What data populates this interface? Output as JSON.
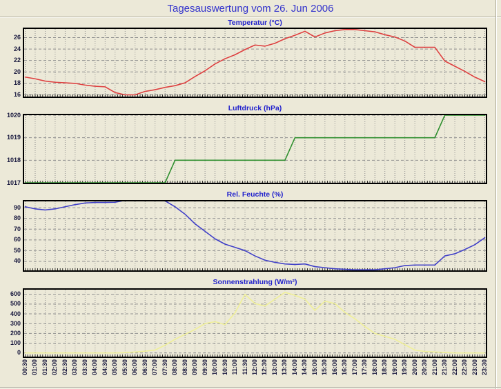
{
  "header": {
    "title": "Tagesauswertung vom 26. Jun 2006"
  },
  "colors": {
    "page_background": "#ece9d8",
    "plot_background": "#ece9d8",
    "grid": "#8f8f8f",
    "axis_border": "#000000",
    "page_title_text": "#3232cc",
    "chart_title_text": "#2222cc",
    "axis_label_text": "#17173d",
    "temperature_line": "#de4040",
    "pressure_line": "#2f8f2f",
    "humidity_line": "#4040c8",
    "radiation_line": "#f0f098"
  },
  "x_axis": {
    "labels": [
      "00:30",
      "01:00",
      "01:30",
      "02:00",
      "02:30",
      "03:00",
      "03:30",
      "04:00",
      "04:30",
      "05:00",
      "05:30",
      "06:00",
      "06:30",
      "07:00",
      "07:30",
      "08:00",
      "08:30",
      "09:00",
      "09:30",
      "10:00",
      "10:30",
      "11:00",
      "11:30",
      "12:00",
      "12:30",
      "13:00",
      "13:30",
      "14:00",
      "14:30",
      "15:00",
      "15:30",
      "16:00",
      "16:30",
      "17:00",
      "17:30",
      "18:00",
      "18:30",
      "19:00",
      "19:30",
      "20:00",
      "20:30",
      "21:00",
      "21:30",
      "22:00",
      "22:30",
      "23:00",
      "23:30"
    ]
  },
  "chart_data": [
    {
      "id": "temperatur",
      "type": "line",
      "title": "Temperatur (°C)",
      "line_color": "#de4040",
      "ylim": [
        15.7,
        27.5
      ],
      "yticks": [
        16,
        18,
        20,
        22,
        24,
        26
      ],
      "grid": true,
      "legend": false,
      "values": [
        19.1,
        18.8,
        18.4,
        18.2,
        18.1,
        18.0,
        17.7,
        17.5,
        17.4,
        16.4,
        16.0,
        16.0,
        16.6,
        16.9,
        17.3,
        17.6,
        18.1,
        19.2,
        20.2,
        21.4,
        22.3,
        23.0,
        23.9,
        24.7,
        24.5,
        25.0,
        25.8,
        26.4,
        27.1,
        26.1,
        26.8,
        27.2,
        27.4,
        27.4,
        27.2,
        27.0,
        26.5,
        26.1,
        25.4,
        24.3,
        24.3,
        24.3,
        21.9,
        21.0,
        20.1,
        19.1,
        18.3
      ]
    },
    {
      "id": "luftdruck",
      "type": "line",
      "title": "Luftdruck (hPa)",
      "line_color": "#2f8f2f",
      "ylim": [
        1017,
        1020
      ],
      "yticks": [
        1017,
        1018,
        1019,
        1020
      ],
      "grid": true,
      "legend": false,
      "values": [
        1017,
        1017,
        1017,
        1017,
        1017,
        1017,
        1017,
        1017,
        1017,
        1017,
        1017,
        1017,
        1017,
        1017,
        1017,
        1018,
        1018,
        1018,
        1018,
        1018,
        1018,
        1018,
        1018,
        1018,
        1018,
        1018,
        1018,
        1019,
        1019,
        1019,
        1019,
        1019,
        1019,
        1019,
        1019,
        1019,
        1019,
        1019,
        1019,
        1019,
        1019,
        1019,
        1020,
        1020,
        1020,
        1020,
        1020
      ]
    },
    {
      "id": "feuchte",
      "type": "line",
      "title": "Rel. Feuchte (%)",
      "line_color": "#4040c8",
      "ylim": [
        31.5,
        96
      ],
      "yticks": [
        40,
        50,
        60,
        70,
        80,
        90
      ],
      "grid": true,
      "legend": false,
      "values": [
        91,
        89,
        88,
        89,
        91,
        93,
        94.5,
        95,
        95,
        95.2,
        97,
        97.5,
        97.5,
        97,
        96.5,
        91,
        84,
        75,
        68,
        61,
        56,
        53,
        50,
        45,
        41,
        39,
        37.5,
        37,
        37.5,
        35,
        34,
        33,
        32.5,
        32,
        32,
        32,
        33,
        34,
        36,
        36.5,
        36.5,
        36.5,
        45,
        47,
        51,
        55.5,
        62
      ]
    },
    {
      "id": "sonnenstrahlung",
      "type": "line",
      "title": "Sonnenstrahlung (W/m²)",
      "line_color": "#f0f098",
      "ylim": [
        -37,
        647
      ],
      "yticks": [
        0,
        100,
        200,
        300,
        400,
        500,
        600
      ],
      "grid": true,
      "legend": false,
      "values": [
        0,
        0,
        0,
        0,
        0,
        0,
        0,
        0,
        0,
        0,
        3,
        10,
        18,
        30,
        80,
        140,
        190,
        240,
        300,
        320,
        290,
        410,
        600,
        505,
        480,
        550,
        620,
        590,
        550,
        435,
        530,
        505,
        415,
        350,
        270,
        200,
        170,
        140,
        85,
        30,
        15,
        10,
        5,
        0,
        0,
        0,
        0
      ]
    }
  ]
}
